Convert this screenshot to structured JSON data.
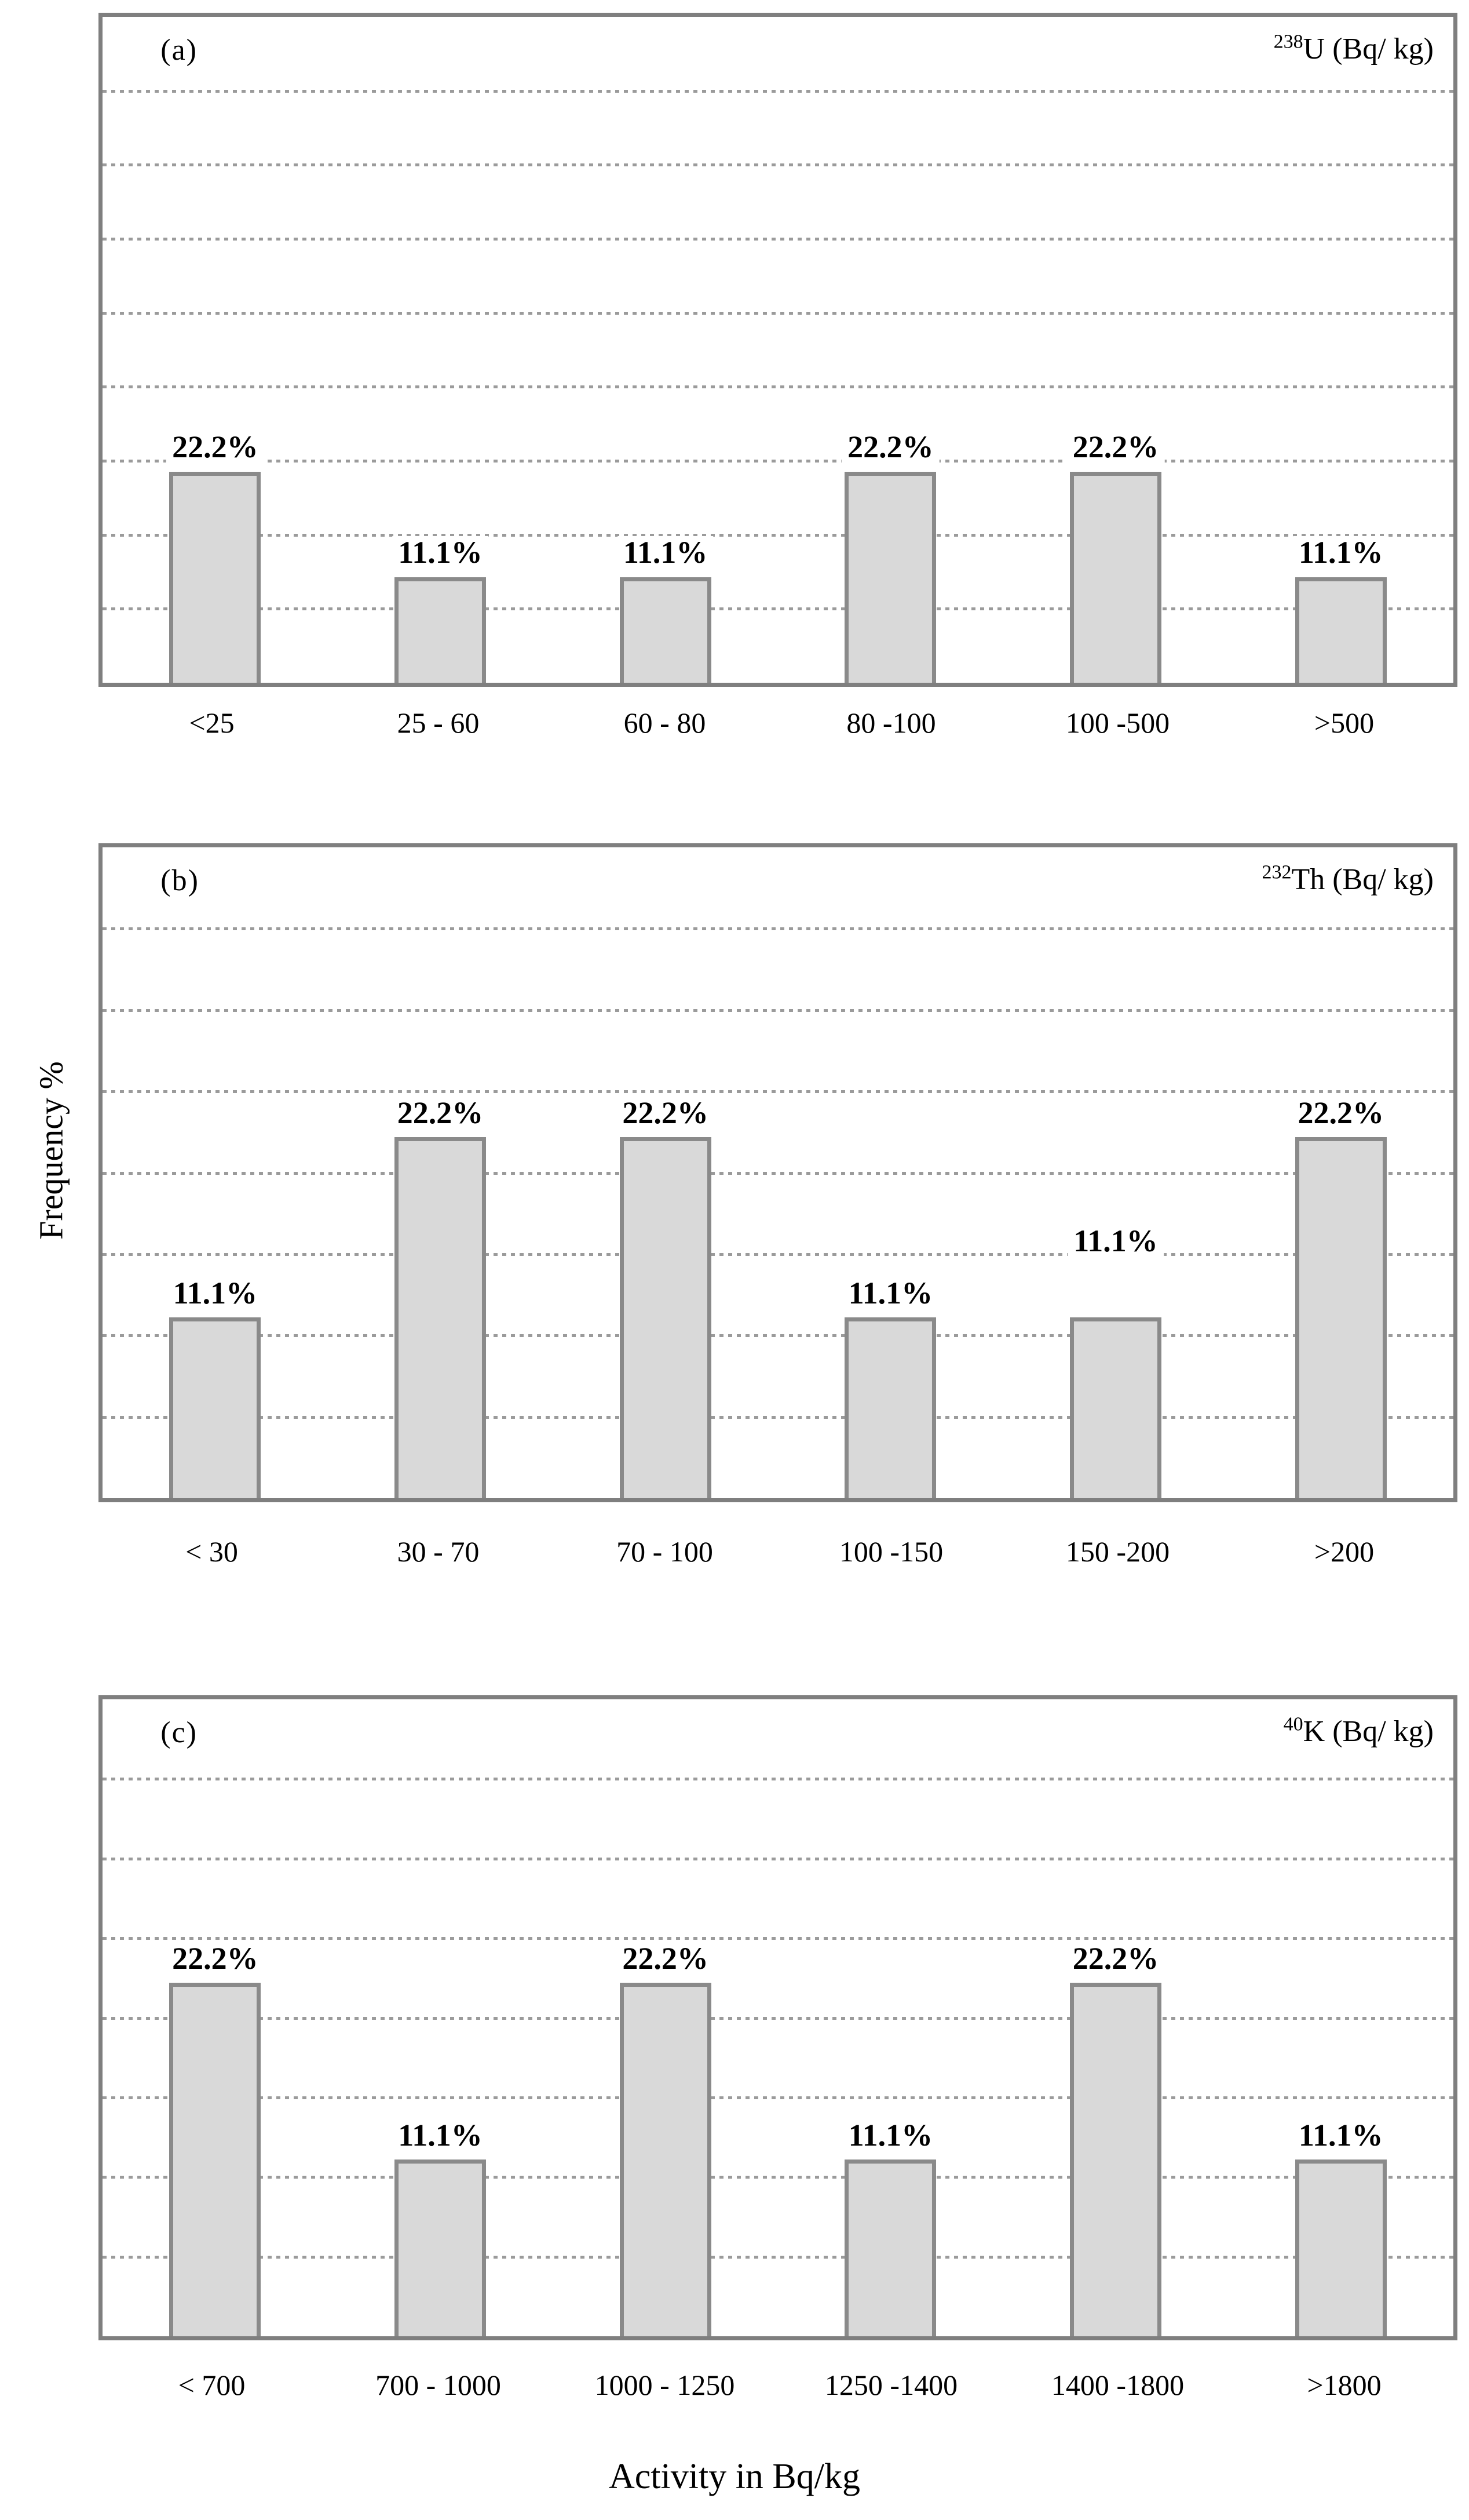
{
  "figure": {
    "y_axis_title": "Frequency %",
    "x_axis_title": "Activity in Bq/kg",
    "background_color": "#ffffff",
    "text_color": "#000000",
    "plot_border_color": "#7f7f7f",
    "gridline_color": "#9b9b9b",
    "gridline_style": "dotted"
  },
  "chart_data": [
    {
      "type": "bar",
      "panel_label": "(a)",
      "title": {
        "sup": "238",
        "base": "U (Bq/ kg)"
      },
      "categories": [
        "<25",
        "25 - 60",
        "60 - 80",
        "80 -100",
        "100 -500",
        ">500"
      ],
      "values": [
        22.2,
        11.1,
        11.1,
        22.2,
        22.2,
        11.1
      ],
      "value_labels": [
        "22.2%",
        "11.1%",
        "11.1%",
        "22.2%",
        "22.2%",
        "11.1%"
      ],
      "ylabel": "Frequency %",
      "ylim": [
        0,
        70
      ],
      "gridlines": 8,
      "grid": "horizontal dotted",
      "legend": "none",
      "bar_fill": "#d9d9d9",
      "bar_border": "#8a8a8a",
      "label_extra_lift_pct": [
        0,
        0,
        0,
        0,
        0,
        0
      ]
    },
    {
      "type": "bar",
      "panel_label": "(b)",
      "title": {
        "sup": "232",
        "base": "Th (Bq/ kg)"
      },
      "categories": [
        "< 30",
        "30 - 70",
        "70 - 100",
        "100 -150",
        "150 -200",
        ">200"
      ],
      "values": [
        11.1,
        22.2,
        22.2,
        11.1,
        11.1,
        22.2
      ],
      "value_labels": [
        "11.1%",
        "22.2%",
        "22.2%",
        "11.1%",
        "11.1%",
        "22.2%"
      ],
      "ylabel": "Frequency %",
      "ylim": [
        0,
        40
      ],
      "gridlines": 7,
      "grid": "horizontal dotted",
      "legend": "none",
      "bar_fill": "#d9d9d9",
      "bar_border": "#8a8a8a",
      "label_extra_lift_pct": [
        0,
        0,
        0,
        0,
        8,
        0
      ]
    },
    {
      "type": "bar",
      "panel_label": "(c)",
      "title": {
        "sup": "40",
        "base": "K (Bq/ kg)"
      },
      "categories": [
        "< 700",
        "700 - 1000",
        "1000 - 1250",
        "1250 -1400",
        "1400 -1800",
        ">1800"
      ],
      "values": [
        22.2,
        11.1,
        22.2,
        11.1,
        22.2,
        11.1
      ],
      "value_labels": [
        "22.2%",
        "11.1%",
        "22.2%",
        "11.1%",
        "22.2%",
        "11.1%"
      ],
      "ylabel": "Frequency %",
      "ylim": [
        0,
        40
      ],
      "gridlines": 7,
      "grid": "horizontal dotted",
      "legend": "none",
      "bar_fill": "#d9d9d9",
      "bar_border": "#8a8a8a",
      "label_extra_lift_pct": [
        0,
        0,
        0,
        0,
        0,
        0
      ]
    }
  ]
}
